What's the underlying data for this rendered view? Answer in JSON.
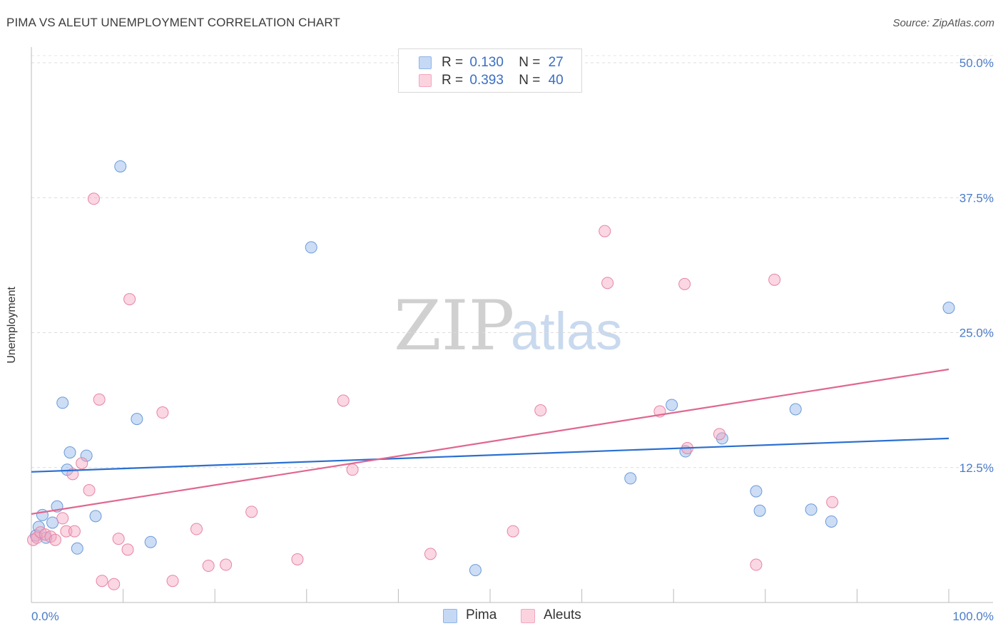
{
  "title": "PIMA VS ALEUT UNEMPLOYMENT CORRELATION CHART",
  "source": "Source: ZipAtlas.com",
  "watermark": {
    "part1": "ZIP",
    "part2": "atlas"
  },
  "legend_top": [
    {
      "r_label": "R =",
      "r_value": "0.130",
      "n_label": "N =",
      "n_value": "27",
      "color": "#8fb4e8"
    },
    {
      "r_label": "R =",
      "r_value": "0.393",
      "n_label": "N =",
      "n_value": "40",
      "color": "#f4a7bf"
    }
  ],
  "legend_bottom": [
    {
      "label": "Pima",
      "color": "#8fb4e8"
    },
    {
      "label": "Aleuts",
      "color": "#f4a7bf"
    }
  ],
  "chart_data": {
    "type": "scatter",
    "xlabel": "",
    "ylabel": "Unemployment",
    "xlim": [
      0,
      100
    ],
    "ylim": [
      0,
      50
    ],
    "x_tick_labels": [
      "0.0%",
      "100.0%"
    ],
    "y_ticks": [
      12.5,
      25.0,
      37.5,
      50.0
    ],
    "y_tick_labels": [
      "12.5%",
      "25.0%",
      "37.5%",
      "50.0%"
    ],
    "grid": "horizontal dashed",
    "series": [
      {
        "name": "Pima",
        "color": "#8fb4e8",
        "stroke": "#6b9ad8",
        "trend_color": "#2a6fd0",
        "trend": [
          [
            0,
            12.1
          ],
          [
            100,
            15.2
          ]
        ],
        "points": [
          [
            0.5,
            6.2
          ],
          [
            0.8,
            7.0
          ],
          [
            1.2,
            8.1
          ],
          [
            1.6,
            6.0
          ],
          [
            2.3,
            7.4
          ],
          [
            2.8,
            8.9
          ],
          [
            3.4,
            18.5
          ],
          [
            3.9,
            12.3
          ],
          [
            4.2,
            13.9
          ],
          [
            5.0,
            5.0
          ],
          [
            6.0,
            13.6
          ],
          [
            7.0,
            8.0
          ],
          [
            9.7,
            40.4
          ],
          [
            11.5,
            17.0
          ],
          [
            13.0,
            5.6
          ],
          [
            30.5,
            32.9
          ],
          [
            48.4,
            3.0
          ],
          [
            65.3,
            11.5
          ],
          [
            69.8,
            18.3
          ],
          [
            71.3,
            14.0
          ],
          [
            75.3,
            15.2
          ],
          [
            79.0,
            10.3
          ],
          [
            79.4,
            8.5
          ],
          [
            83.3,
            17.9
          ],
          [
            85.0,
            8.6
          ],
          [
            87.2,
            7.5
          ],
          [
            100.0,
            27.3
          ]
        ]
      },
      {
        "name": "Aleuts",
        "color": "#f4a7bf",
        "stroke": "#e784a5",
        "trend_color": "#e0678f",
        "trend": [
          [
            0,
            8.2
          ],
          [
            100,
            21.6
          ]
        ],
        "points": [
          [
            0.2,
            5.8
          ],
          [
            0.6,
            6.0
          ],
          [
            1.0,
            6.5
          ],
          [
            1.5,
            6.3
          ],
          [
            2.1,
            6.1
          ],
          [
            2.6,
            5.8
          ],
          [
            3.4,
            7.8
          ],
          [
            3.8,
            6.6
          ],
          [
            4.7,
            6.6
          ],
          [
            4.5,
            11.9
          ],
          [
            5.5,
            12.9
          ],
          [
            6.3,
            10.4
          ],
          [
            6.8,
            37.4
          ],
          [
            7.4,
            18.8
          ],
          [
            7.7,
            2.0
          ],
          [
            9.0,
            1.7
          ],
          [
            9.5,
            5.9
          ],
          [
            10.5,
            4.9
          ],
          [
            10.7,
            28.1
          ],
          [
            14.3,
            17.6
          ],
          [
            15.4,
            2.0
          ],
          [
            18.0,
            6.8
          ],
          [
            19.3,
            3.4
          ],
          [
            21.2,
            3.5
          ],
          [
            24.0,
            8.4
          ],
          [
            29.0,
            4.0
          ],
          [
            34.0,
            18.7
          ],
          [
            35.0,
            12.3
          ],
          [
            43.5,
            4.5
          ],
          [
            52.5,
            6.6
          ],
          [
            55.5,
            17.8
          ],
          [
            62.5,
            34.4
          ],
          [
            62.8,
            29.6
          ],
          [
            68.5,
            17.7
          ],
          [
            71.2,
            29.5
          ],
          [
            71.5,
            14.3
          ],
          [
            75.0,
            15.6
          ],
          [
            79.0,
            3.5
          ],
          [
            81.0,
            29.9
          ],
          [
            87.3,
            9.3
          ]
        ]
      }
    ]
  }
}
